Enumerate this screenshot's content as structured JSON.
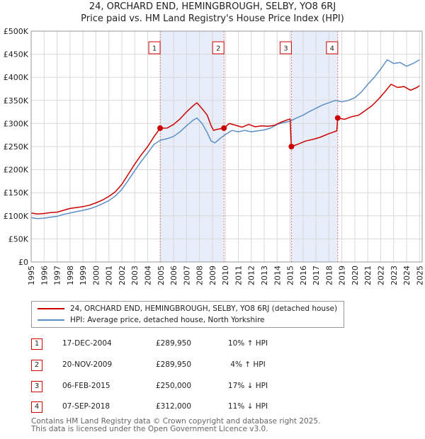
{
  "title": "24, ORCHARD END, HEMINGBROUGH, SELBY, YO8 6RJ",
  "subtitle": "Price paid vs. HM Land Registry's House Price Index (HPI)",
  "chart_data": {
    "type": "line",
    "title": "24, ORCHARD END, HEMINGBROUGH, SELBY, YO8 6RJ",
    "subtitle": "Price paid vs. HM Land Registry's House Price Index (HPI)",
    "xlim": [
      1995,
      2025.2
    ],
    "ylim": [
      0,
      500000
    ],
    "grid": true,
    "y_ticks": [
      0,
      50000,
      100000,
      150000,
      200000,
      250000,
      300000,
      350000,
      400000,
      450000,
      500000
    ],
    "y_tick_labels": [
      "£0",
      "£50K",
      "£100K",
      "£150K",
      "£200K",
      "£250K",
      "£300K",
      "£350K",
      "£400K",
      "£450K",
      "£500K"
    ],
    "x_tick_labels": [
      "1995",
      "1996",
      "1997",
      "1998",
      "1999",
      "2000",
      "2001",
      "2002",
      "2003",
      "2004",
      "2005",
      "2006",
      "2007",
      "2008",
      "2009",
      "2010",
      "2011",
      "2012",
      "2013",
      "2014",
      "2015",
      "2016",
      "2017",
      "2018",
      "2019",
      "2020",
      "2021",
      "2022",
      "2023",
      "2024",
      "2025"
    ],
    "series": [
      {
        "name": "24, ORCHARD END, HEMINGBROUGH, SELBY, YO8 6RJ (detached house)",
        "color": "#cc0000",
        "points": [
          [
            1995.0,
            106000
          ],
          [
            1995.5,
            104000
          ],
          [
            1996.0,
            105000
          ],
          [
            1996.5,
            107000
          ],
          [
            1997.0,
            108000
          ],
          [
            1997.5,
            112000
          ],
          [
            1998.0,
            116000
          ],
          [
            1998.5,
            118000
          ],
          [
            1999.0,
            120000
          ],
          [
            1999.5,
            123000
          ],
          [
            2000.0,
            128000
          ],
          [
            2000.5,
            134000
          ],
          [
            2001.0,
            142000
          ],
          [
            2001.5,
            152000
          ],
          [
            2002.0,
            168000
          ],
          [
            2002.5,
            190000
          ],
          [
            2003.0,
            212000
          ],
          [
            2003.5,
            232000
          ],
          [
            2004.0,
            250000
          ],
          [
            2004.5,
            272000
          ],
          [
            2004.96,
            289950
          ],
          [
            2005.5,
            290000
          ],
          [
            2006.0,
            298000
          ],
          [
            2006.5,
            310000
          ],
          [
            2007.0,
            325000
          ],
          [
            2007.5,
            338000
          ],
          [
            2007.8,
            345000
          ],
          [
            2008.2,
            332000
          ],
          [
            2008.6,
            318000
          ],
          [
            2008.9,
            295000
          ],
          [
            2009.1,
            285000
          ],
          [
            2009.3,
            287000
          ],
          [
            2009.89,
            289950
          ],
          [
            2010.3,
            300000
          ],
          [
            2010.8,
            296000
          ],
          [
            2011.3,
            292000
          ],
          [
            2011.8,
            298000
          ],
          [
            2012.3,
            293000
          ],
          [
            2012.8,
            295000
          ],
          [
            2013.3,
            294000
          ],
          [
            2013.8,
            296000
          ],
          [
            2014.3,
            303000
          ],
          [
            2014.8,
            308000
          ],
          [
            2015.0,
            310000
          ],
          [
            2015.1,
            250000
          ],
          [
            2015.6,
            255000
          ],
          [
            2016.2,
            262000
          ],
          [
            2016.8,
            266000
          ],
          [
            2017.3,
            270000
          ],
          [
            2017.9,
            277000
          ],
          [
            2018.6,
            284000
          ],
          [
            2018.68,
            312000
          ],
          [
            2019.2,
            309000
          ],
          [
            2019.8,
            315000
          ],
          [
            2020.3,
            318000
          ],
          [
            2020.8,
            328000
          ],
          [
            2021.3,
            338000
          ],
          [
            2021.8,
            352000
          ],
          [
            2022.3,
            368000
          ],
          [
            2022.8,
            385000
          ],
          [
            2023.3,
            378000
          ],
          [
            2023.8,
            380000
          ],
          [
            2024.3,
            372000
          ],
          [
            2024.8,
            378000
          ],
          [
            2025.0,
            382000
          ]
        ]
      },
      {
        "name": "HPI: Average price, detached house, North Yorkshire",
        "color": "#5b8fc7",
        "points": [
          [
            1995.0,
            96000
          ],
          [
            1995.5,
            94000
          ],
          [
            1996.0,
            95000
          ],
          [
            1996.5,
            97000
          ],
          [
            1997.0,
            99000
          ],
          [
            1997.5,
            103000
          ],
          [
            1998.0,
            106000
          ],
          [
            1998.5,
            109000
          ],
          [
            1999.0,
            112000
          ],
          [
            1999.5,
            115000
          ],
          [
            2000.0,
            120000
          ],
          [
            2000.5,
            126000
          ],
          [
            2001.0,
            133000
          ],
          [
            2001.5,
            143000
          ],
          [
            2002.0,
            157000
          ],
          [
            2002.5,
            177000
          ],
          [
            2003.0,
            198000
          ],
          [
            2003.5,
            218000
          ],
          [
            2004.0,
            236000
          ],
          [
            2004.5,
            255000
          ],
          [
            2005.0,
            264000
          ],
          [
            2005.5,
            267000
          ],
          [
            2006.0,
            272000
          ],
          [
            2006.5,
            282000
          ],
          [
            2007.0,
            295000
          ],
          [
            2007.5,
            307000
          ],
          [
            2007.8,
            312000
          ],
          [
            2008.2,
            300000
          ],
          [
            2008.6,
            280000
          ],
          [
            2008.9,
            262000
          ],
          [
            2009.2,
            258000
          ],
          [
            2009.6,
            268000
          ],
          [
            2010.0,
            276000
          ],
          [
            2010.5,
            285000
          ],
          [
            2011.0,
            282000
          ],
          [
            2011.5,
            285000
          ],
          [
            2012.0,
            282000
          ],
          [
            2012.5,
            284000
          ],
          [
            2013.0,
            286000
          ],
          [
            2013.5,
            290000
          ],
          [
            2014.0,
            298000
          ],
          [
            2014.5,
            302000
          ],
          [
            2015.0,
            305000
          ],
          [
            2015.5,
            312000
          ],
          [
            2016.0,
            318000
          ],
          [
            2016.5,
            326000
          ],
          [
            2017.0,
            333000
          ],
          [
            2017.5,
            340000
          ],
          [
            2018.0,
            345000
          ],
          [
            2018.5,
            350000
          ],
          [
            2019.0,
            347000
          ],
          [
            2019.5,
            350000
          ],
          [
            2020.0,
            356000
          ],
          [
            2020.5,
            368000
          ],
          [
            2021.0,
            385000
          ],
          [
            2021.5,
            400000
          ],
          [
            2022.0,
            418000
          ],
          [
            2022.5,
            438000
          ],
          [
            2023.0,
            430000
          ],
          [
            2023.5,
            432000
          ],
          [
            2024.0,
            424000
          ],
          [
            2024.5,
            430000
          ],
          [
            2025.0,
            438000
          ]
        ]
      }
    ],
    "sales": [
      {
        "label": "1",
        "x": 2004.96,
        "price": 289950
      },
      {
        "label": "2",
        "x": 2009.89,
        "price": 289950
      },
      {
        "label": "3",
        "x": 2015.1,
        "price": 250000
      },
      {
        "label": "4",
        "x": 2018.68,
        "price": 312000
      }
    ],
    "shaded_spans": [
      [
        2004.96,
        2009.89
      ],
      [
        2015.1,
        2018.68
      ]
    ]
  },
  "legend": {
    "property_label": "24, ORCHARD END, HEMINGBROUGH, SELBY, YO8 6RJ (detached house)",
    "hpi_label": "HPI: Average price, detached house, North Yorkshire",
    "property_color": "#cc0000",
    "hpi_color": "#5b8fc7"
  },
  "sales_table": [
    {
      "num": "1",
      "date": "17-DEC-2004",
      "price": "£289,950",
      "hpi": "10% ↑ HPI"
    },
    {
      "num": "2",
      "date": "20-NOV-2009",
      "price": "£289,950",
      "hpi": "4% ↑ HPI"
    },
    {
      "num": "3",
      "date": "06-FEB-2015",
      "price": "£250,000",
      "hpi": "17% ↓ HPI"
    },
    {
      "num": "4",
      "date": "07-SEP-2018",
      "price": "£312,000",
      "hpi": "11% ↓ HPI"
    }
  ],
  "footer": {
    "line1": "Contains HM Land Registry data © Crown copyright and database right 2025.",
    "line2": "This data is licensed under the Open Government Licence v3.0."
  }
}
